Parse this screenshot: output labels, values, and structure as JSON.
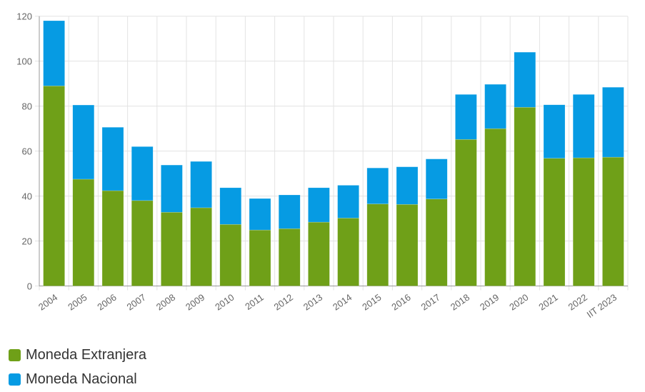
{
  "chart_data": {
    "type": "bar",
    "stacked": true,
    "categories": [
      "2004",
      "2005",
      "2006",
      "2007",
      "2008",
      "2009",
      "2010",
      "2011",
      "2012",
      "2013",
      "2014",
      "2015",
      "2016",
      "2017",
      "2018",
      "2019",
      "2020",
      "2021",
      "2022",
      "IIT 2023"
    ],
    "series": [
      {
        "name": "Moneda Extranjera",
        "color": "#6fa018",
        "values": [
          89,
          47.5,
          42.4,
          38,
          32.8,
          34.8,
          27.4,
          24.9,
          25.5,
          28.4,
          30.2,
          36.5,
          36.3,
          38.7,
          65.2,
          70,
          79.5,
          56.8,
          57,
          57.3
        ]
      },
      {
        "name": "Moneda Nacional",
        "color": "#069be3",
        "values": [
          29,
          33,
          28.2,
          24,
          21,
          20.6,
          16.3,
          14,
          15,
          15.3,
          14.6,
          16,
          16.7,
          17.8,
          20,
          19.7,
          24.5,
          23.8,
          28.2,
          31.1
        ]
      }
    ],
    "yticks": [
      "0",
      "20",
      "40",
      "60",
      "80",
      "100",
      "120"
    ],
    "ylim": [
      0,
      120
    ],
    "grid": true,
    "legend": "bottom-left",
    "title": "",
    "xlabel": "",
    "ylabel": ""
  }
}
